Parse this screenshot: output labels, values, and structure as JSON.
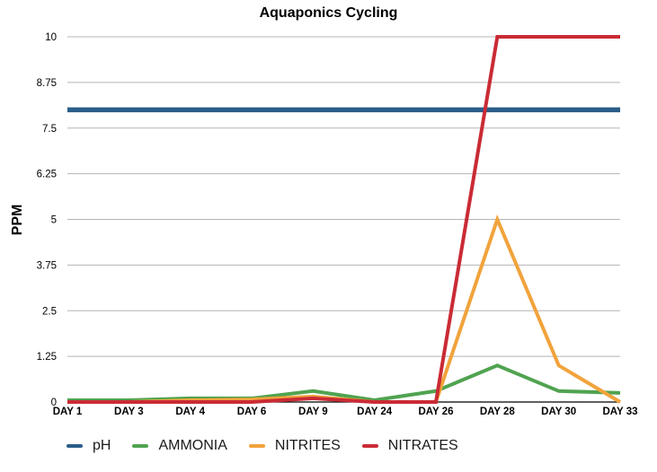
{
  "chart_data": {
    "type": "line",
    "title": "Aquaponics Cycling",
    "xlabel": "",
    "ylabel": "PPM",
    "categories": [
      "DAY 1",
      "DAY 3",
      "DAY 4",
      "DAY 6",
      "DAY 9",
      "DAY 24",
      "DAY 26",
      "DAY 28",
      "DAY 30",
      "DAY 33"
    ],
    "series": [
      {
        "name": "pH",
        "color": "#2a5d89",
        "values": [
          8,
          8,
          8,
          8,
          8,
          8,
          8,
          8,
          8,
          8
        ]
      },
      {
        "name": "AMMONIA",
        "color": "#50a350",
        "values": [
          0.05,
          0.05,
          0.1,
          0.1,
          0.3,
          0.05,
          0.3,
          1,
          0.3,
          0.25
        ]
      },
      {
        "name": "NITRITES",
        "color": "#f1a33c",
        "values": [
          0,
          0,
          0.05,
          0.07,
          0.15,
          0,
          0,
          5,
          1,
          0
        ]
      },
      {
        "name": "NITRATES",
        "color": "#ca2b35",
        "values": [
          0,
          0,
          0,
          0,
          0.1,
          0,
          0,
          10,
          10,
          10
        ]
      }
    ],
    "yticks": [
      "0",
      "1.25",
      "2.5",
      "3.75",
      "5",
      "6.25",
      "7.5",
      "8.75",
      "10"
    ],
    "ylim": [
      0,
      10
    ],
    "grid": true,
    "gridline_color": "#b5b5b5",
    "axis_color": "#000000",
    "legend_position": "bottom-left"
  }
}
